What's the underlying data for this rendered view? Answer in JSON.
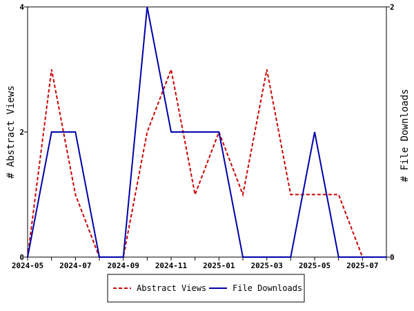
{
  "chart_data": {
    "type": "line",
    "x": [
      "2024-05",
      "2024-06",
      "2024-07",
      "2024-08",
      "2024-09",
      "2024-10",
      "2024-11",
      "2024-12",
      "2025-01",
      "2025-02",
      "2025-03",
      "2025-04",
      "2025-05",
      "2025-06",
      "2025-07",
      "2025-08"
    ],
    "x_tick_labels": [
      "2024-05",
      "2024-07",
      "2024-09",
      "2024-11",
      "2025-01",
      "2025-03",
      "2025-05",
      "2025-07"
    ],
    "ylabel_left": "# Abstract Views",
    "ylabel_right": "# File Downloads",
    "ylim_left": [
      0,
      4
    ],
    "ylim_right": [
      0,
      2
    ],
    "y_ticks_left": [
      "0",
      "2",
      "4"
    ],
    "y_ticks_right": [
      "0",
      "2"
    ],
    "legend_position": "bottom-center",
    "grid": false,
    "series": [
      {
        "name": "Abstract Views",
        "axis": "left",
        "color": "#cc0000",
        "style": "dashed",
        "values": [
          0,
          3,
          1,
          0,
          0,
          2,
          3,
          1,
          2,
          1,
          3,
          1,
          1,
          1,
          0,
          0
        ]
      },
      {
        "name": "File Downloads",
        "axis": "right",
        "color": "#0000aa",
        "style": "solid",
        "values": [
          0,
          1,
          1,
          0,
          0,
          2,
          1,
          1,
          1,
          0,
          0,
          0,
          1,
          0,
          0,
          0
        ]
      }
    ]
  }
}
